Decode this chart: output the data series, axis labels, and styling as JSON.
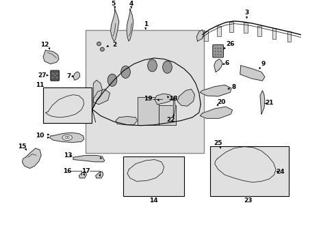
{
  "bg_color": "#ffffff",
  "line_color": "#000000",
  "dark_gray": "#555555",
  "mid_gray": "#999999",
  "light_gray": "#cccccc",
  "lighter_gray": "#e0e0e0",
  "dot_fill": "#e8e8e8",
  "box_fill": "#e8e8e8",
  "box_edge": "#888888",
  "xlim": [
    0,
    10
  ],
  "ylim": [
    0,
    7.5
  ]
}
